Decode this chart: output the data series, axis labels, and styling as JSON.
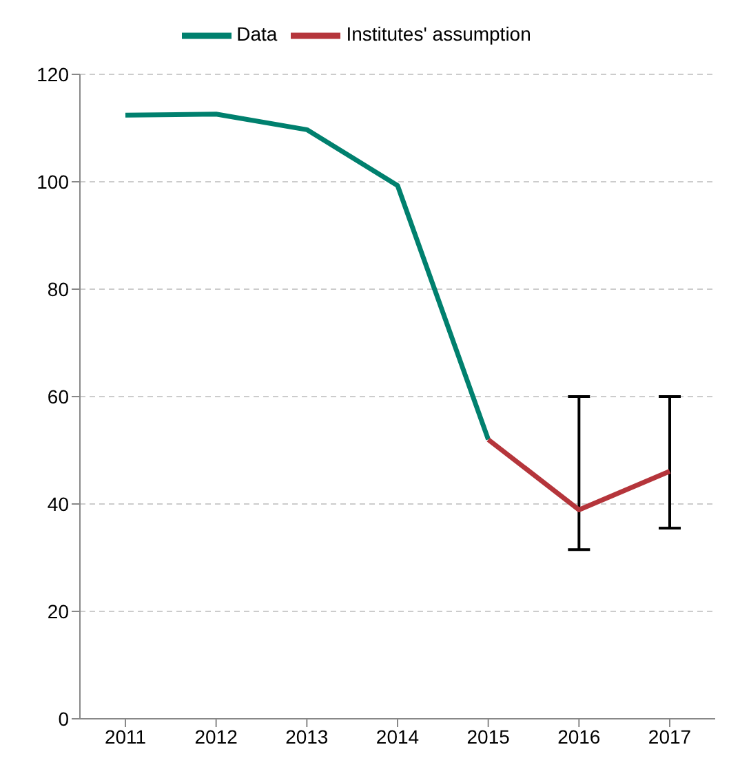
{
  "chart_data": {
    "type": "line",
    "categories": [
      "2011",
      "2012",
      "2013",
      "2014",
      "2015",
      "2016",
      "2017"
    ],
    "series": [
      {
        "name": "Data",
        "color": "#00806e",
        "values": [
          112.4,
          112.6,
          109.7,
          99.3,
          52,
          null,
          null
        ]
      },
      {
        "name": "Institutes' assumption",
        "color": "#b5353b",
        "values": [
          null,
          null,
          null,
          null,
          52,
          38.9,
          46.1
        ],
        "errors": [
          null,
          null,
          null,
          null,
          null,
          [
            31.5,
            60
          ],
          [
            35.5,
            60
          ]
        ]
      }
    ],
    "ylim": [
      0,
      120
    ],
    "yticks": [
      0,
      20,
      40,
      60,
      80,
      100,
      120
    ],
    "grid": "y",
    "legend": "top",
    "marker": "none",
    "line_style": "solid"
  }
}
